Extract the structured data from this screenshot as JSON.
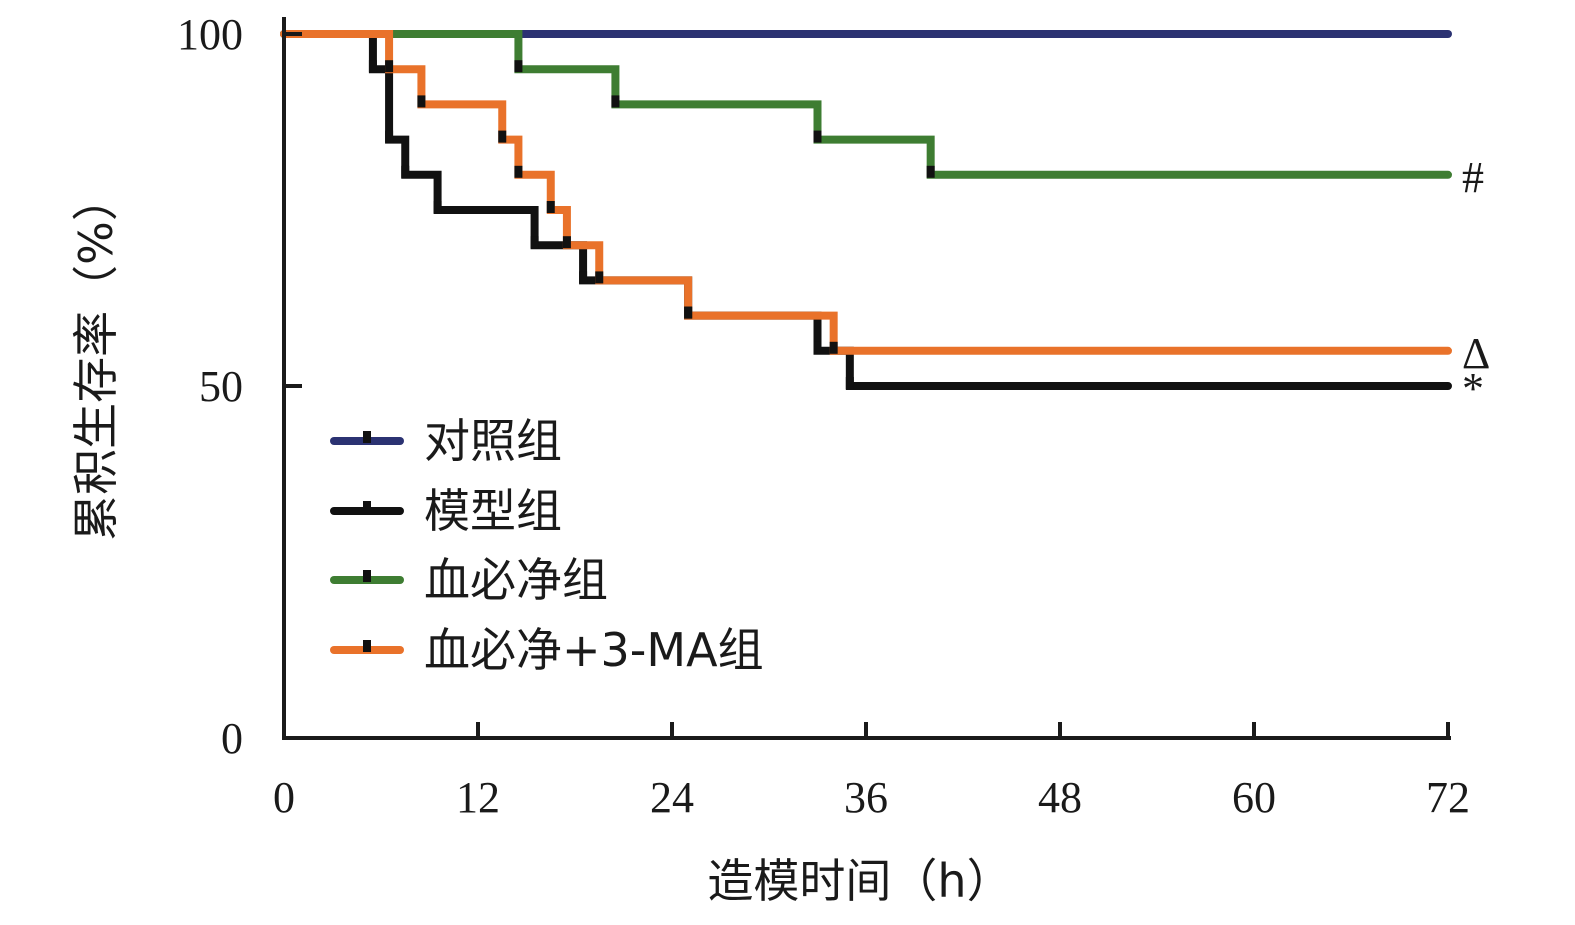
{
  "chart_data": {
    "type": "line",
    "step": true,
    "xlabel": "造模时间（h）",
    "ylabel": "累积生存率（%）",
    "xlim": [
      0,
      72
    ],
    "ylim": [
      0,
      100
    ],
    "xticks": [
      "0",
      "12",
      "24",
      "36",
      "48",
      "60",
      "72"
    ],
    "yticks": [
      "0",
      "50",
      "100"
    ],
    "grid": false,
    "legend_position": "bottom-left",
    "series": [
      {
        "name": "对照组",
        "color": "#2b3272",
        "points": [
          [
            0,
            100
          ],
          [
            72,
            100
          ]
        ],
        "end_label": ""
      },
      {
        "name": "模型组",
        "color": "#111111",
        "points": [
          [
            0,
            100
          ],
          [
            5.5,
            95
          ],
          [
            6.5,
            85
          ],
          [
            7.5,
            80
          ],
          [
            9.5,
            75
          ],
          [
            15.5,
            70
          ],
          [
            18.5,
            65
          ],
          [
            25,
            60
          ],
          [
            33,
            55
          ],
          [
            35,
            50
          ],
          [
            72,
            50
          ]
        ],
        "end_label": "*"
      },
      {
        "name": "血必净组",
        "color": "#3e7d32",
        "points": [
          [
            0,
            100
          ],
          [
            14.5,
            95
          ],
          [
            20.5,
            90
          ],
          [
            33,
            85
          ],
          [
            40,
            80
          ],
          [
            72,
            80
          ]
        ],
        "end_label": "#"
      },
      {
        "name": "血必净+3-MA组",
        "color": "#e9722a",
        "points": [
          [
            0,
            100
          ],
          [
            6.5,
            95
          ],
          [
            8.5,
            90
          ],
          [
            13.5,
            85
          ],
          [
            14.5,
            80
          ],
          [
            16.5,
            75
          ],
          [
            17.5,
            70
          ],
          [
            19.5,
            65
          ],
          [
            25,
            60
          ],
          [
            34,
            55
          ],
          [
            72,
            55
          ]
        ],
        "end_label": "Δ"
      }
    ]
  }
}
